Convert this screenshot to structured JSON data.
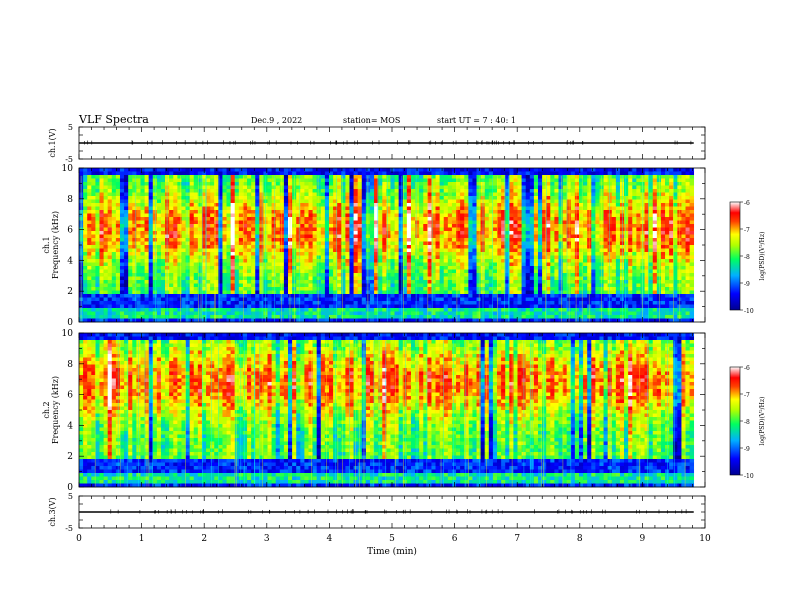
{
  "header": {
    "title": "VLF Spectra",
    "date": "Dec.9 , 2022",
    "station": "station= MOS",
    "start": "start UT = 7 : 40: 1"
  },
  "chart_data": [
    {
      "type": "line",
      "id": "ch1-waveform",
      "ylabel": "ch.1(V)",
      "ylim": [
        -5,
        5
      ],
      "yticks": [
        "5",
        "-5"
      ],
      "xlim": [
        0,
        10
      ],
      "series": [
        {
          "x": [
            0,
            9.82
          ],
          "y": [
            0,
            0
          ]
        }
      ]
    },
    {
      "type": "heatmap",
      "id": "ch1-spectrogram",
      "ylabel": "ch.1",
      "ylabel2": "Frequency (kHz)",
      "ylim": [
        0,
        10
      ],
      "yticks": [
        "0",
        "2",
        "4",
        "6",
        "8",
        "10"
      ],
      "xlim": [
        0,
        10
      ],
      "data_xmax": 9.82,
      "band_top_khz": 9.5,
      "peak_khz": 6.0,
      "colorbar": {
        "label": "log(PSD)(V²/Hz)",
        "range": [
          -10,
          -6
        ],
        "ticks": [
          "-6",
          "-7",
          "-8",
          "-9",
          "-10"
        ]
      }
    },
    {
      "type": "heatmap",
      "id": "ch2-spectrogram",
      "ylabel": "ch.2",
      "ylabel2": "Frequency (kHz)",
      "ylim": [
        0,
        10
      ],
      "yticks": [
        "0",
        "2",
        "4",
        "6",
        "8",
        "10"
      ],
      "xlim": [
        0,
        10
      ],
      "data_xmax": 9.82,
      "band_top_khz": 9.6,
      "peak_khz": 6.8,
      "colorbar": {
        "label": "log(PSD)(V²/Hz)",
        "range": [
          -10,
          -6
        ],
        "ticks": [
          "-6",
          "-7",
          "-8",
          "-9",
          "-10"
        ]
      }
    },
    {
      "type": "line",
      "id": "ch3-waveform",
      "ylabel": "ch.3(V)",
      "ylim": [
        -5,
        5
      ],
      "yticks": [
        "5",
        "-5"
      ],
      "xlim": [
        0,
        10
      ],
      "xlabel": "Time (min)",
      "xticks": [
        "0",
        "1",
        "2",
        "3",
        "4",
        "5",
        "6",
        "7",
        "8",
        "9",
        "10"
      ],
      "series": [
        {
          "x": [
            0,
            9.82
          ],
          "y": [
            0,
            0
          ]
        }
      ]
    }
  ]
}
